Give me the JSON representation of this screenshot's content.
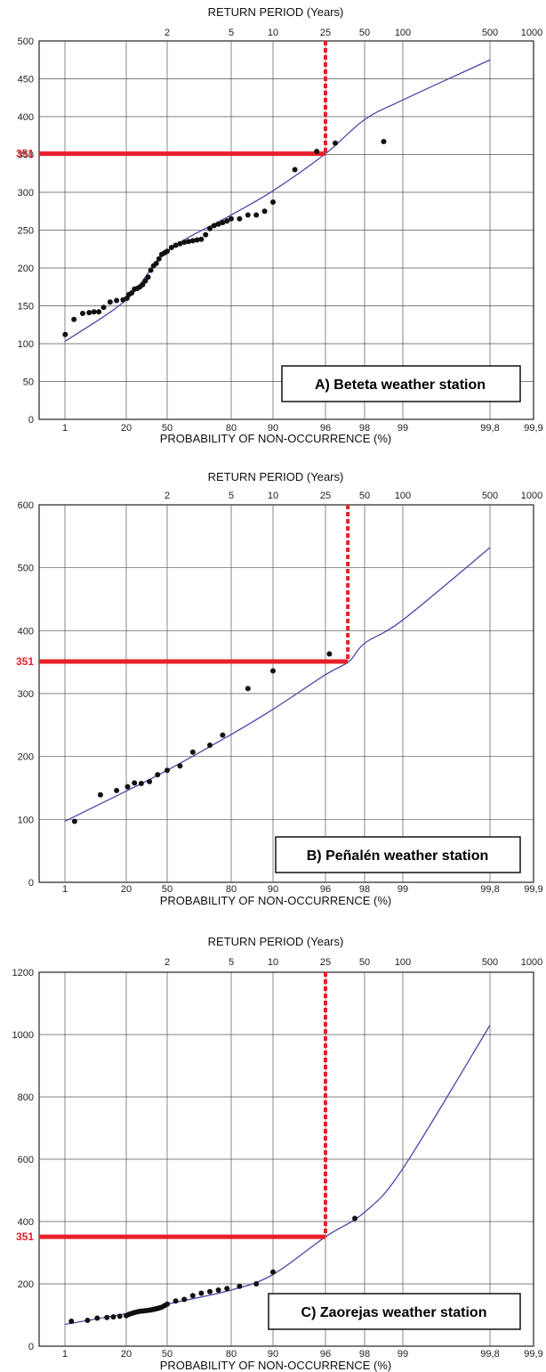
{
  "chart_data": [
    {
      "type": "scatter",
      "title": "A) Beteta weather station",
      "xlabel": "PROBABILITY OF NON-OCCURRENCE (%)",
      "x2label": "RETURN PERIOD (Years)",
      "ylim": [
        0,
        500
      ],
      "y_ticks": [
        "0",
        "50",
        "100",
        "150",
        "200",
        "250",
        "300",
        "350",
        "400",
        "450",
        "500"
      ],
      "x_ticks": [
        "1",
        "20",
        "50",
        "80",
        "90",
        "96",
        "98",
        "99",
        "99,8",
        "99,9"
      ],
      "x2_ticks": [
        "2",
        "5",
        "10",
        "25",
        "50",
        "100",
        "500",
        "1000"
      ],
      "threshold_label": "351",
      "threshold_value": 351,
      "threshold_return_period": 25,
      "series": [
        {
          "kind": "points",
          "x": [
            1.1,
            3.8,
            6.5,
            8.5,
            10,
            11.5,
            13,
            15,
            17,
            19,
            20.5,
            22,
            24,
            26,
            28,
            30,
            32,
            34,
            36,
            38,
            40,
            42,
            44,
            46,
            48,
            50,
            52,
            54,
            56,
            58,
            60,
            62,
            64,
            66,
            68,
            70,
            72,
            74,
            76,
            78,
            80,
            82,
            84,
            86,
            88,
            90,
            92.5,
            95,
            96.5,
            98.5
          ],
          "y": [
            112,
            132,
            140,
            141,
            142,
            142,
            148,
            155,
            157,
            158,
            160,
            165,
            167,
            172,
            173,
            175,
            178,
            183,
            188,
            197,
            203,
            206,
            212,
            218,
            220,
            222,
            227,
            230,
            232,
            234,
            235,
            236,
            237,
            238,
            244,
            252,
            256,
            258,
            260,
            262,
            265,
            265,
            270,
            270,
            275,
            287,
            330,
            354,
            365,
            367
          ]
        },
        {
          "kind": "fit",
          "x": [
            1,
            20,
            50,
            80,
            90,
            96,
            98,
            99,
            99.8
          ],
          "y": [
            103,
            158,
            222,
            270,
            302,
            351,
            396,
            422,
            475
          ]
        }
      ]
    },
    {
      "type": "scatter",
      "title": "B) Peñalén weather station",
      "xlabel": "PROBABILITY OF NON-OCCURRENCE (%)",
      "x2label": "RETURN PERIOD (Years)",
      "ylim": [
        0,
        600
      ],
      "y_ticks": [
        "0",
        "100",
        "200",
        "300",
        "400",
        "500",
        "600"
      ],
      "x_ticks": [
        "1",
        "20",
        "50",
        "80",
        "90",
        "96",
        "98",
        "99",
        "99,8",
        "99,9"
      ],
      "x2_ticks": [
        "2",
        "5",
        "10",
        "25",
        "50",
        "100",
        "500",
        "1000"
      ],
      "threshold_label": "351",
      "threshold_value": 351,
      "threshold_return_period": 35,
      "series": [
        {
          "kind": "points",
          "x": [
            4,
            12,
            17,
            21,
            26,
            31,
            37,
            43,
            50,
            56,
            62,
            70,
            76,
            84,
            90,
            96.2
          ],
          "y": [
            97,
            139,
            146,
            152,
            158,
            157,
            160,
            171,
            178,
            185,
            207,
            218,
            234,
            308,
            336,
            363
          ]
        },
        {
          "kind": "fit",
          "x": [
            1,
            20,
            50,
            80,
            90,
            96,
            97.2,
            98,
            99,
            99.8
          ],
          "y": [
            97,
            145,
            178,
            235,
            275,
            330,
            351,
            380,
            417,
            532
          ]
        }
      ]
    },
    {
      "type": "scatter",
      "title": "C) Zaorejas weather station",
      "xlabel": "PROBABILITY OF NON-OCCURRENCE (%)",
      "x2label": "RETURN PERIOD (Years)",
      "ylim": [
        0,
        1200
      ],
      "y_ticks": [
        "0",
        "200",
        "400",
        "600",
        "800",
        "1000",
        "1200"
      ],
      "x_ticks": [
        "1",
        "20",
        "50",
        "80",
        "90",
        "96",
        "98",
        "99",
        "99,8",
        "99,9"
      ],
      "x2_ticks": [
        "2",
        "5",
        "10",
        "25",
        "50",
        "100",
        "500",
        "1000"
      ],
      "threshold_label": "351",
      "threshold_value": 351,
      "threshold_return_period": 25,
      "series": [
        {
          "kind": "points",
          "x": [
            3,
            8,
            11,
            14,
            16,
            18,
            20,
            22,
            24,
            26,
            28,
            30,
            32,
            34,
            36,
            38,
            40,
            42,
            44,
            46,
            48,
            50,
            54,
            58,
            62,
            66,
            70,
            74,
            78,
            82,
            86,
            90,
            97.5
          ],
          "y": [
            80,
            83,
            90,
            92,
            94,
            96,
            98,
            102,
            105,
            108,
            110,
            112,
            113,
            114,
            115,
            116,
            118,
            120,
            122,
            125,
            130,
            135,
            145,
            150,
            162,
            170,
            175,
            180,
            185,
            192,
            200,
            238,
            410
          ]
        },
        {
          "kind": "fit",
          "x": [
            1,
            20,
            50,
            80,
            90,
            96,
            98,
            99,
            99.8
          ],
          "y": [
            70,
            105,
            135,
            180,
            230,
            351,
            430,
            570,
            1030
          ]
        }
      ]
    }
  ]
}
